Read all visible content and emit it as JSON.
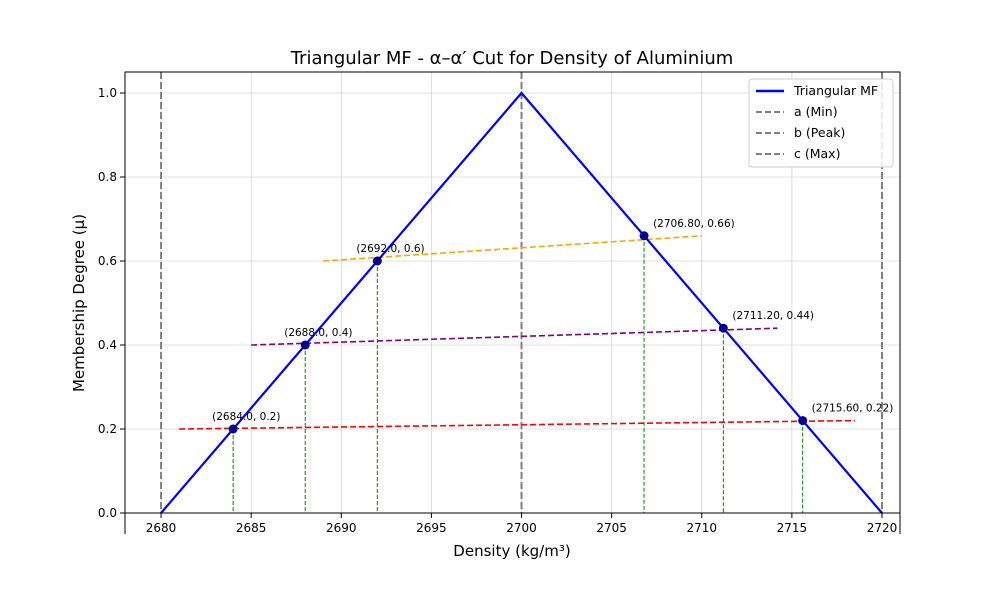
{
  "chart_data": {
    "type": "line",
    "title": "Triangular MF - α–α′ Cut for Density of Aluminium",
    "xlabel": "Density (kg/m³)",
    "ylabel": "Membership Degree (μ)",
    "xlim": [
      2678,
      2721
    ],
    "ylim": [
      0,
      1.05
    ],
    "xticks": [
      2680,
      2685,
      2690,
      2695,
      2700,
      2705,
      2710,
      2715,
      2720
    ],
    "yticks": [
      0.0,
      0.2,
      0.4,
      0.6,
      0.8,
      1.0
    ],
    "grid": true,
    "legend_position": "top-right",
    "mf": {
      "a": 2680,
      "b": 2700,
      "c": 2720
    },
    "series": [
      {
        "name": "Triangular MF",
        "x": [
          2680,
          2700,
          2720
        ],
        "y": [
          0,
          1,
          0
        ],
        "color": "#0000ff",
        "style": "solid"
      },
      {
        "name": "a (Min)",
        "vline": 2680,
        "color": "#808080",
        "style": "dashed"
      },
      {
        "name": "b (Peak)",
        "vline": 2700,
        "color": "#808080",
        "style": "dashed"
      },
      {
        "name": "c (Max)",
        "vline": 2720,
        "color": "#808080",
        "style": "dashed"
      }
    ],
    "cuts": [
      {
        "x": [
          2681,
          2718.5
        ],
        "y": [
          0.2,
          0.22
        ],
        "color": "#ff0000"
      },
      {
        "x": [
          2685,
          2714.2
        ],
        "y": [
          0.4,
          0.44
        ],
        "color": "#800080"
      },
      {
        "x": [
          2689,
          2710
        ],
        "y": [
          0.6,
          0.66
        ],
        "color": "#ffa500"
      }
    ],
    "points": [
      {
        "x": 2684.0,
        "y": 0.2,
        "label": "(2684.0, 0.2)"
      },
      {
        "x": 2688.0,
        "y": 0.4,
        "label": "(2688.0, 0.4)"
      },
      {
        "x": 2692.0,
        "y": 0.6,
        "label": "(2692.0, 0.6)"
      },
      {
        "x": 2706.8,
        "y": 0.66,
        "label": "(2706.80, 0.66)"
      },
      {
        "x": 2711.2,
        "y": 0.44,
        "label": "(2711.20, 0.44)"
      },
      {
        "x": 2715.6,
        "y": 0.22,
        "label": "(2715.60, 0.22)"
      }
    ],
    "drop_line_color": "#008000",
    "point_color": "#00008b"
  }
}
